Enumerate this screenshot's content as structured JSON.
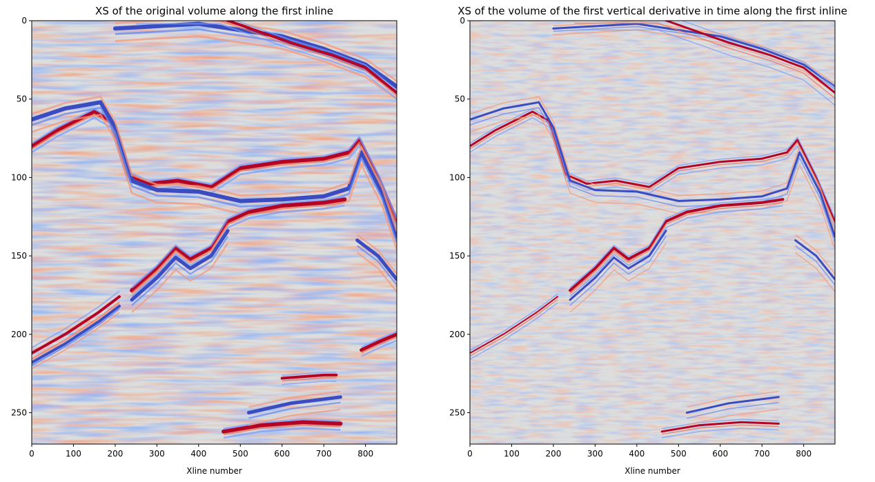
{
  "chart_data": [
    {
      "type": "heatmap",
      "title": "XS of the original volume along the first inline",
      "xlabel": "Xline number",
      "ylabel": "",
      "xlim": [
        0,
        875
      ],
      "ylim": [
        270,
        0
      ],
      "xticks": [
        0,
        100,
        200,
        300,
        400,
        500,
        600,
        700,
        800
      ],
      "yticks": [
        0,
        50,
        100,
        150,
        200,
        250
      ],
      "colormap": "coolwarm",
      "variant": "original",
      "horizons": [
        {
          "points": [
            [
              0,
              80
            ],
            [
              60,
              70
            ],
            [
              150,
              58
            ],
            [
              190,
              64
            ],
            [
              230,
              98
            ],
            [
              280,
              104
            ],
            [
              350,
              102
            ],
            [
              430,
              106
            ],
            [
              500,
              94
            ],
            [
              600,
              90
            ],
            [
              700,
              88
            ],
            [
              760,
              84
            ],
            [
              785,
              76
            ],
            [
              830,
              100
            ],
            [
              875,
              128
            ]
          ],
          "color": "red",
          "width": 6
        },
        {
          "points": [
            [
              0,
              63
            ],
            [
              80,
              56
            ],
            [
              165,
              52
            ],
            [
              200,
              68
            ],
            [
              240,
              102
            ],
            [
              300,
              108
            ],
            [
              400,
              109
            ],
            [
              500,
              115
            ],
            [
              600,
              114
            ],
            [
              700,
              112
            ],
            [
              760,
              107
            ],
            [
              790,
              84
            ],
            [
              840,
              110
            ],
            [
              875,
              138
            ]
          ],
          "color": "blue",
          "width": 6
        },
        {
          "points": [
            [
              240,
              172
            ],
            [
              300,
              158
            ],
            [
              345,
              145
            ],
            [
              380,
              152
            ],
            [
              430,
              145
            ],
            [
              470,
              128
            ],
            [
              520,
              122
            ],
            [
              600,
              118
            ],
            [
              700,
              116
            ],
            [
              750,
              114
            ]
          ],
          "color": "red",
          "width": 6
        },
        {
          "points": [
            [
              240,
              178
            ],
            [
              300,
              164
            ],
            [
              345,
              151
            ],
            [
              380,
              158
            ],
            [
              430,
              150
            ],
            [
              470,
              134
            ]
          ],
          "color": "blue",
          "width": 5
        },
        {
          "points": [
            [
              460,
              262
            ],
            [
              550,
              258
            ],
            [
              650,
              256
            ],
            [
              740,
              257
            ]
          ],
          "color": "red",
          "width": 6
        },
        {
          "points": [
            [
              520,
              250
            ],
            [
              620,
              244
            ],
            [
              740,
              240
            ]
          ],
          "color": "blue",
          "width": 5
        },
        {
          "points": [
            [
              600,
              228
            ],
            [
              700,
              226
            ],
            [
              730,
              226
            ]
          ],
          "color": "red",
          "width": 4
        },
        {
          "points": [
            [
              0,
              212
            ],
            [
              80,
              200
            ],
            [
              160,
              186
            ],
            [
              210,
              176
            ]
          ],
          "color": "red",
          "width": 4
        },
        {
          "points": [
            [
              0,
              218
            ],
            [
              80,
              206
            ],
            [
              160,
              192
            ],
            [
              210,
              182
            ]
          ],
          "color": "blue",
          "width": 4
        },
        {
          "points": [
            [
              780,
              140
            ],
            [
              830,
              150
            ],
            [
              875,
              165
            ]
          ],
          "color": "blue",
          "width": 5
        },
        {
          "points": [
            [
              790,
              210
            ],
            [
              830,
              205
            ],
            [
              875,
              200
            ]
          ],
          "color": "red",
          "width": 5
        },
        {
          "points": [
            [
              200,
              5
            ],
            [
              400,
              2
            ],
            [
              600,
              10
            ],
            [
              700,
              18
            ],
            [
              800,
              28
            ],
            [
              875,
              42
            ]
          ],
          "color": "blue",
          "width": 6
        },
        {
          "points": [
            [
              250,
              -2
            ],
            [
              450,
              -2
            ],
            [
              620,
              14
            ],
            [
              720,
              22
            ],
            [
              800,
              30
            ],
            [
              875,
              46
            ]
          ],
          "color": "red",
          "width": 4
        }
      ]
    },
    {
      "type": "heatmap",
      "title": "XS of the volume of the first vertical derivative in time along the first inline",
      "xlabel": "Xline number",
      "ylabel": "",
      "xlim": [
        0,
        875
      ],
      "ylim": [
        270,
        0
      ],
      "xticks": [
        0,
        100,
        200,
        300,
        400,
        500,
        600,
        700,
        800
      ],
      "yticks": [
        0,
        50,
        100,
        150,
        200,
        250
      ],
      "colormap": "coolwarm",
      "variant": "derivative",
      "horizons": [
        {
          "points": [
            [
              0,
              80
            ],
            [
              60,
              70
            ],
            [
              150,
              58
            ],
            [
              190,
              64
            ],
            [
              230,
              98
            ],
            [
              280,
              104
            ],
            [
              350,
              102
            ],
            [
              430,
              106
            ],
            [
              500,
              94
            ],
            [
              600,
              90
            ],
            [
              700,
              88
            ],
            [
              760,
              84
            ],
            [
              785,
              76
            ],
            [
              830,
              100
            ],
            [
              875,
              128
            ]
          ],
          "color": "red",
          "width": 3
        },
        {
          "points": [
            [
              0,
              63
            ],
            [
              80,
              56
            ],
            [
              165,
              52
            ],
            [
              200,
              68
            ],
            [
              240,
              102
            ],
            [
              300,
              108
            ],
            [
              400,
              109
            ],
            [
              500,
              115
            ],
            [
              600,
              114
            ],
            [
              700,
              112
            ],
            [
              760,
              107
            ],
            [
              790,
              84
            ],
            [
              840,
              110
            ],
            [
              875,
              138
            ]
          ],
          "color": "blue",
          "width": 3
        },
        {
          "points": [
            [
              240,
              172
            ],
            [
              300,
              158
            ],
            [
              345,
              145
            ],
            [
              380,
              152
            ],
            [
              430,
              145
            ],
            [
              470,
              128
            ],
            [
              520,
              122
            ],
            [
              600,
              118
            ],
            [
              700,
              116
            ],
            [
              750,
              114
            ]
          ],
          "color": "red",
          "width": 4
        },
        {
          "points": [
            [
              240,
              178
            ],
            [
              300,
              164
            ],
            [
              345,
              151
            ],
            [
              380,
              158
            ],
            [
              430,
              150
            ],
            [
              470,
              134
            ]
          ],
          "color": "blue",
          "width": 3
        },
        {
          "points": [
            [
              460,
              262
            ],
            [
              550,
              258
            ],
            [
              650,
              256
            ],
            [
              740,
              257
            ]
          ],
          "color": "red",
          "width": 3
        },
        {
          "points": [
            [
              520,
              250
            ],
            [
              620,
              244
            ],
            [
              740,
              240
            ]
          ],
          "color": "blue",
          "width": 3
        },
        {
          "points": [
            [
              0,
              212
            ],
            [
              80,
              200
            ],
            [
              160,
              186
            ],
            [
              210,
              176
            ]
          ],
          "color": "red",
          "width": 2
        },
        {
          "points": [
            [
              780,
              140
            ],
            [
              830,
              150
            ],
            [
              875,
              165
            ]
          ],
          "color": "blue",
          "width": 3
        },
        {
          "points": [
            [
              200,
              5
            ],
            [
              400,
              2
            ],
            [
              600,
              10
            ],
            [
              700,
              18
            ],
            [
              800,
              28
            ],
            [
              875,
              42
            ]
          ],
          "color": "blue",
          "width": 3
        },
        {
          "points": [
            [
              250,
              -2
            ],
            [
              450,
              -2
            ],
            [
              620,
              14
            ],
            [
              720,
              22
            ],
            [
              800,
              30
            ],
            [
              875,
              46
            ]
          ],
          "color": "red",
          "width": 3
        }
      ]
    }
  ]
}
